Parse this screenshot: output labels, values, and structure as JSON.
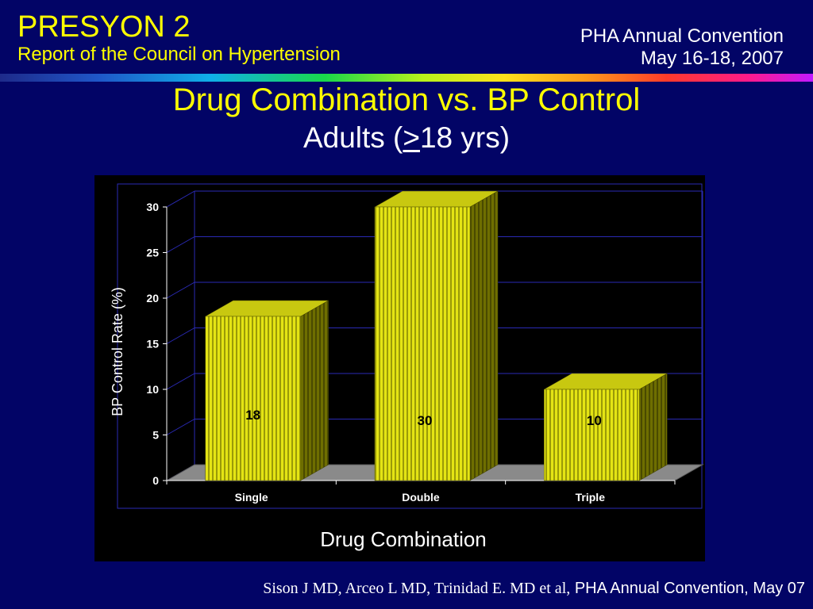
{
  "header": {
    "title": "PRESYON 2",
    "subtitle": "Report of the Council on Hypertension",
    "event": "PHA Annual Convention",
    "dates": "May 16-18, 2007"
  },
  "slide_title": {
    "line1": "Drug Combination vs. BP Control",
    "line2_prefix": "Adults (",
    "line2_symbol": ">",
    "line2_suffix": "18 yrs)"
  },
  "footer": {
    "authors": "Sison J MD, Arceo L MD, Trinidad E. MD et al,",
    "source": "PHA Annual Convention, May 07"
  },
  "colors": {
    "background": "#020466",
    "accent": "#ffff00",
    "bar_face": "#e4e414",
    "bar_side": "#6e6e00",
    "bar_top": "#c8c810",
    "floor": "#8a8a8a",
    "gridline": "#2a2ab4"
  },
  "chart_data": {
    "type": "bar",
    "style": "3d-column",
    "categories": [
      "Single",
      "Double",
      "Triple"
    ],
    "values": [
      18,
      30,
      10
    ],
    "data_labels": [
      "18",
      "30",
      "10"
    ],
    "xlabel": "Drug Combination",
    "ylabel": "BP Control Rate (%)",
    "ylim": [
      0,
      30
    ],
    "yticks": [
      0,
      5,
      10,
      15,
      20,
      25,
      30
    ],
    "grid": true,
    "legend": "none"
  }
}
